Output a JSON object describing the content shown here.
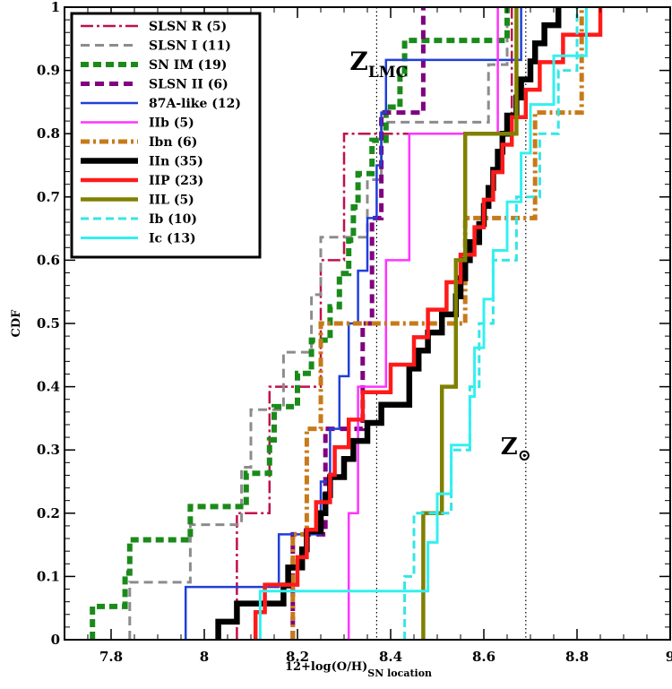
{
  "chart_data": {
    "type": "line",
    "step": true,
    "xlabel_main": "12+log(O/H)",
    "xlabel_sub": "SN location",
    "ylabel": "CDF",
    "xlim": [
      7.7,
      9.0
    ],
    "ylim": [
      0,
      1
    ],
    "x_ticks": [
      "7.8",
      "8",
      "8.2",
      "8.4",
      "8.6",
      "8.8",
      "9"
    ],
    "x_tick_values": [
      7.8,
      8.0,
      8.2,
      8.4,
      8.6,
      8.8,
      9.0
    ],
    "y_ticks": [
      "0",
      "0.1",
      "0.2",
      "0.3",
      "0.4",
      "0.5",
      "0.6",
      "0.7",
      "0.8",
      "0.9",
      "1"
    ],
    "y_tick_values": [
      0,
      0.1,
      0.2,
      0.3,
      0.4,
      0.5,
      0.6,
      0.7,
      0.8,
      0.9,
      1.0
    ],
    "legend_position": "top-left",
    "reference_lines": [
      {
        "x": 8.37,
        "label_main": "Z",
        "label_sub": "LMC"
      },
      {
        "x": 8.69,
        "label_main": "Z",
        "label_sub": "⊙"
      }
    ],
    "series": [
      {
        "name": "SLSN R (5)",
        "color": "#c0104a",
        "dash": "14,4,3,4",
        "width": 2.5,
        "x": [
          8.07,
          8.14,
          8.25,
          8.3,
          8.66
        ]
      },
      {
        "name": "SLSN I (11)",
        "color": "#8c8c8c",
        "dash": "10,6",
        "width": 3,
        "x": [
          7.84,
          7.97,
          8.08,
          8.1,
          8.17,
          8.23,
          8.25,
          8.35,
          8.38,
          8.61,
          8.65
        ]
      },
      {
        "name": "SN IM (19)",
        "color": "#1a8a1a",
        "dash": "9,5",
        "width": 6,
        "x": [
          7.76,
          7.83,
          7.84,
          7.97,
          8.09,
          8.14,
          8.15,
          8.2,
          8.23,
          8.27,
          8.29,
          8.31,
          8.32,
          8.33,
          8.36,
          8.39,
          8.42,
          8.43,
          8.65
        ]
      },
      {
        "name": "SLSN II (6)",
        "color": "#800080",
        "dash": "10,6",
        "width": 5,
        "x": [
          8.19,
          8.26,
          8.34,
          8.36,
          8.38,
          8.47
        ]
      },
      {
        "name": "87A-like (12)",
        "color": "#1f3fd9",
        "dash": "",
        "width": 2.5,
        "x": [
          7.96,
          8.16,
          8.25,
          8.27,
          8.29,
          8.31,
          8.33,
          8.35,
          8.37,
          8.38,
          8.39,
          8.68
        ]
      },
      {
        "name": "IIb (5)",
        "color": "#ff33ff",
        "dash": "",
        "width": 2.5,
        "x": [
          8.31,
          8.33,
          8.39,
          8.44,
          8.63
        ]
      },
      {
        "name": "Ibn (6)",
        "color": "#c77a1a",
        "dash": "10,4,3,4",
        "width": 5,
        "x": [
          8.19,
          8.22,
          8.25,
          8.56,
          8.71,
          8.81
        ]
      },
      {
        "name": "IIn (35)",
        "color": "#000000",
        "dash": "",
        "width": 6.5,
        "x": [
          8.03,
          8.07,
          8.17,
          8.18,
          8.21,
          8.22,
          8.25,
          8.26,
          8.27,
          8.3,
          8.32,
          8.35,
          8.38,
          8.44,
          8.44,
          8.46,
          8.48,
          8.51,
          8.54,
          8.55,
          8.56,
          8.57,
          8.59,
          8.6,
          8.61,
          8.62,
          8.63,
          8.64,
          8.65,
          8.67,
          8.68,
          8.7,
          8.71,
          8.73,
          8.76
        ]
      },
      {
        "name": "IIP (23)",
        "color": "#ff1a1a",
        "dash": "",
        "width": 4.5,
        "x": [
          8.11,
          8.13,
          8.2,
          8.22,
          8.24,
          8.27,
          8.28,
          8.31,
          8.34,
          8.4,
          8.45,
          8.48,
          8.52,
          8.55,
          8.58,
          8.6,
          8.62,
          8.64,
          8.66,
          8.69,
          8.72,
          8.77,
          8.85
        ]
      },
      {
        "name": "IIL (5)",
        "color": "#808000",
        "dash": "",
        "width": 4.5,
        "x": [
          8.47,
          8.51,
          8.54,
          8.56,
          8.67
        ]
      },
      {
        "name": "Ib (10)",
        "color": "#33e6e6",
        "dash": "9,5",
        "width": 3,
        "x": [
          8.43,
          8.45,
          8.53,
          8.57,
          8.59,
          8.62,
          8.67,
          8.72,
          8.76,
          8.8
        ]
      },
      {
        "name": "Ic (13)",
        "color": "#33f0f0",
        "dash": "",
        "width": 3,
        "x": [
          8.12,
          8.48,
          8.5,
          8.53,
          8.57,
          8.58,
          8.6,
          8.62,
          8.65,
          8.68,
          8.7,
          8.75,
          8.82
        ]
      }
    ]
  }
}
